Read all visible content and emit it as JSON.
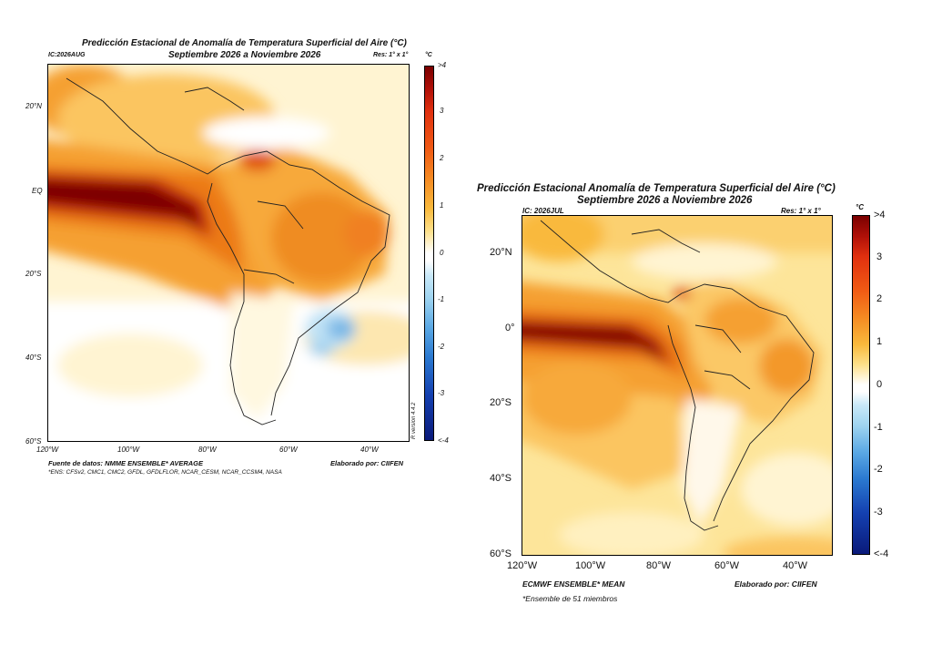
{
  "left": {
    "title_line1": "Predicción Estacional de Anomalía de Temperatura Superficial del Aire (°C)",
    "title_line2": "Septiembre 2026 a Noviembre 2026",
    "ic": "IC:2026AUG",
    "res": "Res: 1° x 1°",
    "unit": "°C",
    "lat_ticks": [
      "20°N",
      "EQ",
      "20°S",
      "40°S",
      "60°S"
    ],
    "lon_ticks": [
      "120°W",
      "100°W",
      "80°W",
      "60°W",
      "40°W"
    ],
    "cbar_ticks": [
      ">4",
      "3",
      "2",
      "1",
      "0",
      "-1",
      "-2",
      "-3",
      "<-4"
    ],
    "source": "Fuente de datos: NMME ENSEMBLE* AVERAGE",
    "elaborado": "Elaborado por: CIIFEN",
    "footnote": "*ENS: CFSv2, CMC1, CMC2, GFDL, GFDLFLOR, NCAR_CESM, NCAR_CCSM4, NASA",
    "version": "R version 4.4.2"
  },
  "right": {
    "title_line1": "Predicción Estacional Anomalía de Temperatura Superficial del Aire (°C)",
    "title_line2": "Septiembre 2026 a Noviembre 2026",
    "ic": "IC: 2026JUL",
    "res": "Res: 1° x 1°",
    "unit": "°C",
    "lat_ticks": [
      "20°N",
      "0°",
      "20°S",
      "40°S",
      "60°S"
    ],
    "lon_ticks": [
      "120°W",
      "100°W",
      "80°W",
      "60°W",
      "40°W"
    ],
    "cbar_ticks": [
      ">4",
      "3",
      "2",
      "1",
      "0",
      "-1",
      "-2",
      "-3",
      "<-4"
    ],
    "source": "ECMWF ENSEMBLE* MEAN",
    "elaborado": "Elaborado por: CIIFEN",
    "footnote": "*Ensemble de 51 miembros"
  },
  "colors": {
    "deep_red": "#7a0000",
    "red": "#c81e0a",
    "orange": "#f08a1e",
    "light_orange": "#f9b93c",
    "yellow": "#fde08a",
    "pale": "#fff4d2",
    "white": "#ffffff",
    "light_blue": "#9fd4f0",
    "blue": "#2a78d0",
    "navy": "#0a1a7a"
  }
}
